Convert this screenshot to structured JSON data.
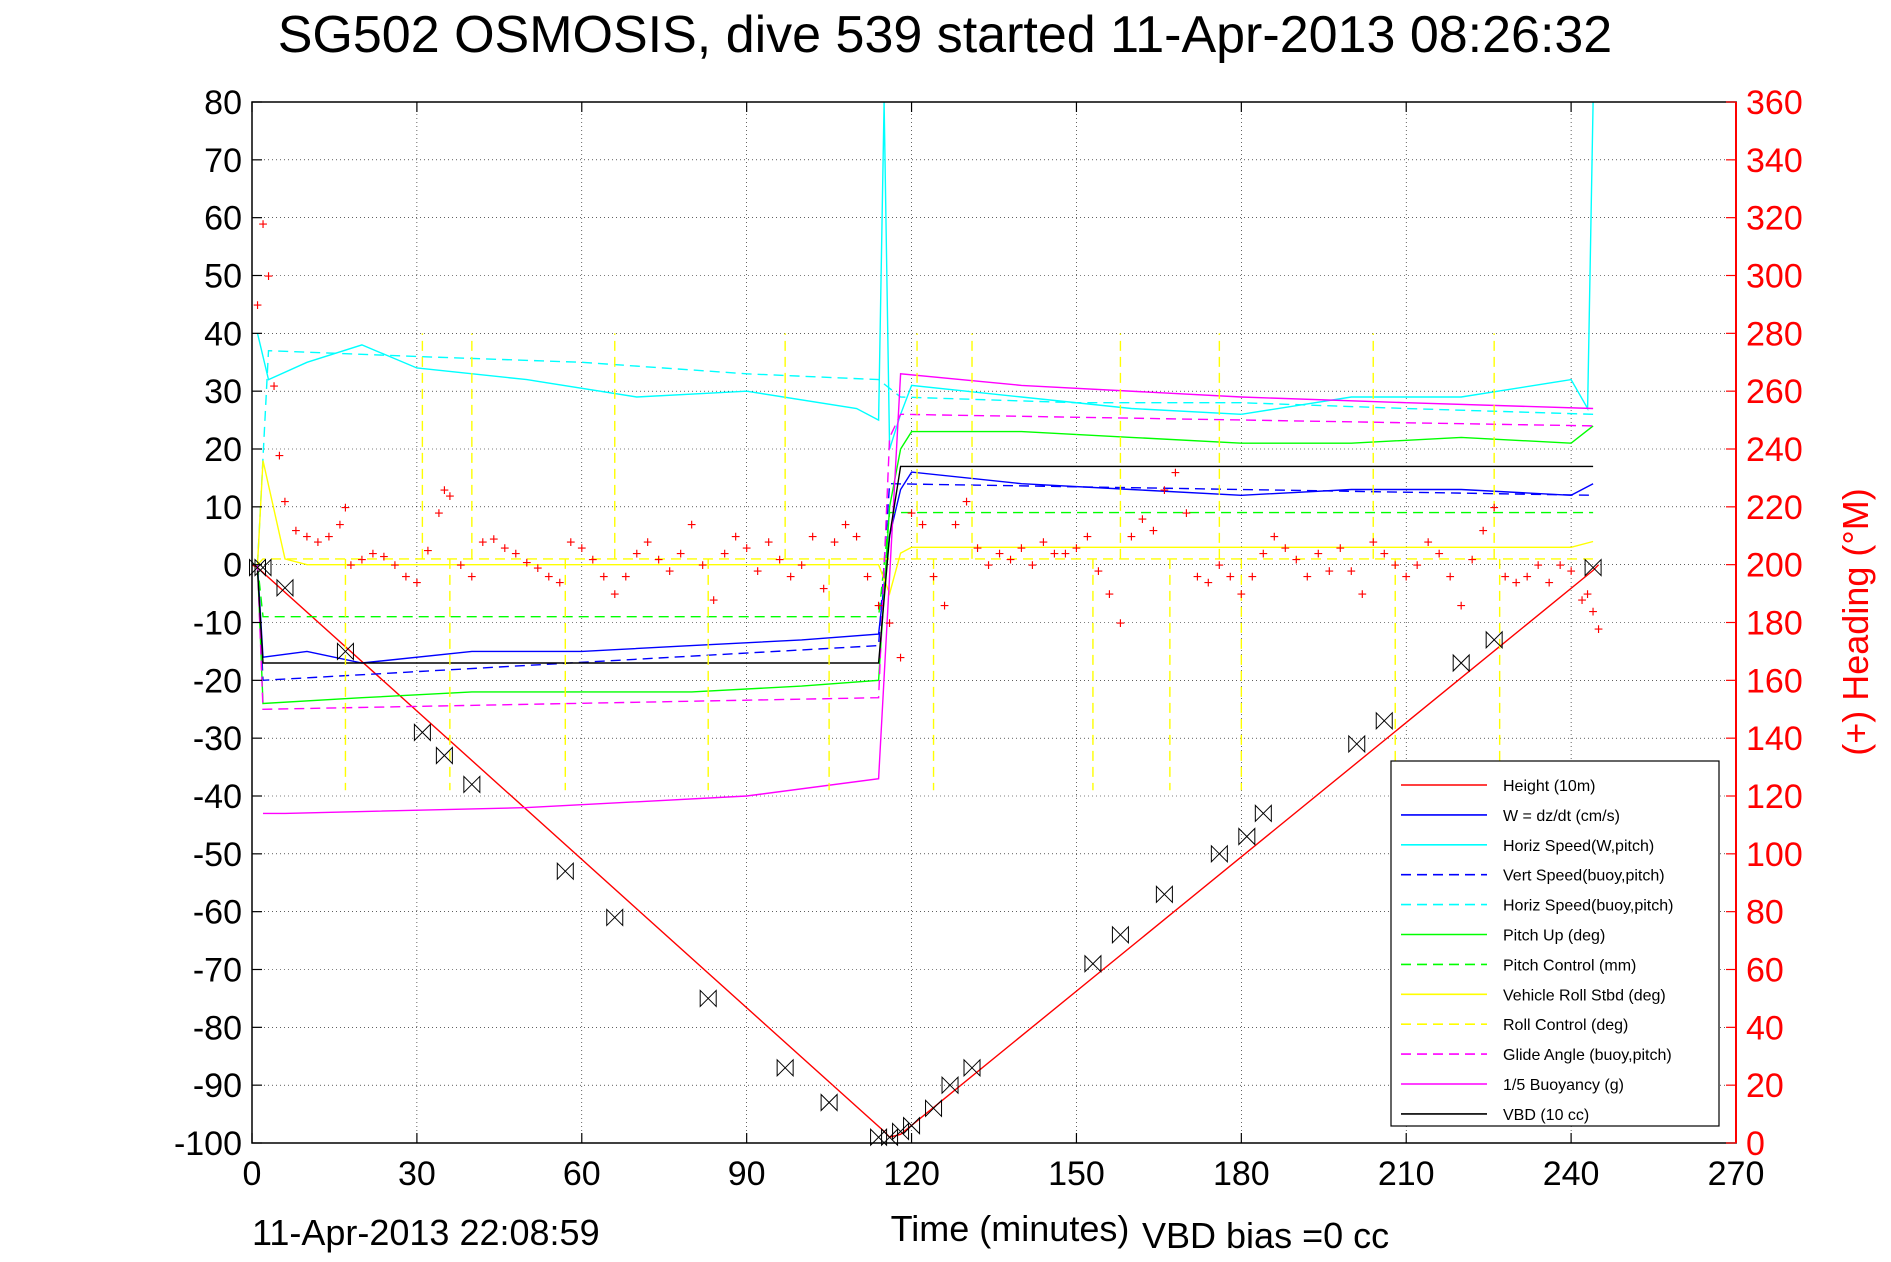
{
  "chart_data": {
    "type": "line",
    "title": "SG502 OSMOSIS, dive 539 started 11-Apr-2013 08:26:32",
    "xlabel": "Time (minutes)",
    "ylabel_right": "(+) Heading (°M)",
    "footer_left": "11-Apr-2013 22:08:59",
    "footer_right": "VBD bias =0 cc",
    "xlim": [
      0,
      270
    ],
    "ylim": [
      -100,
      80
    ],
    "ylim_right": [
      0,
      360
    ],
    "x_ticks": [
      0,
      30,
      60,
      90,
      120,
      150,
      180,
      210,
      240,
      270
    ],
    "x_tick_labels": [
      "0",
      "30",
      "60",
      "90",
      "120",
      "150",
      "180",
      "210",
      "240",
      "270"
    ],
    "y_ticks": [
      80,
      70,
      60,
      50,
      40,
      30,
      20,
      10,
      0,
      -10,
      -20,
      -30,
      -40,
      -50,
      -60,
      -70,
      -80,
      -90,
      -100
    ],
    "y_tick_labels": [
      "80",
      "70",
      "60",
      "50",
      "40",
      "30",
      "20",
      "10",
      "0",
      "-10",
      "-20",
      "-30",
      "-40",
      "-50",
      "-60",
      "-70",
      "-80",
      "-90",
      "-100"
    ],
    "y2_ticks": [
      360,
      340,
      320,
      300,
      280,
      260,
      240,
      220,
      200,
      180,
      160,
      140,
      120,
      100,
      80,
      60,
      40,
      20,
      0
    ],
    "y2_tick_labels": [
      "360",
      "340",
      "320",
      "300",
      "280",
      "260",
      "240",
      "220",
      "200",
      "180",
      "160",
      "140",
      "120",
      "100",
      "80",
      "60",
      "40",
      "20",
      "0"
    ],
    "grid": true,
    "legend_position": "bottom-right",
    "series": [
      {
        "name": "Height (10m)",
        "color": "#ff0000",
        "style": "solid",
        "x": [
          0,
          1,
          115,
          116,
          118,
          244,
          245
        ],
        "y": [
          0,
          -0.5,
          -98,
          -99,
          -98.5,
          -1,
          0
        ]
      },
      {
        "name": "W = dz/dt (cm/s)",
        "color": "#0000ff",
        "style": "solid",
        "x": [
          1,
          2,
          10,
          20,
          40,
          60,
          80,
          100,
          114,
          116,
          118,
          120,
          140,
          160,
          180,
          200,
          220,
          240,
          244
        ],
        "y": [
          0,
          -16,
          -15,
          -17,
          -15,
          -15,
          -14,
          -13,
          -12,
          5,
          13,
          16,
          14,
          13,
          12,
          13,
          13,
          12,
          14
        ]
      },
      {
        "name": "Horiz Speed(W,pitch)",
        "color": "#00ffff",
        "style": "solid",
        "x": [
          1,
          3,
          10,
          20,
          30,
          50,
          70,
          90,
          110,
          114,
          115,
          116,
          118,
          120,
          140,
          160,
          180,
          200,
          220,
          240,
          243,
          244
        ],
        "y": [
          40,
          32,
          35,
          38,
          34,
          32,
          29,
          30,
          27,
          25,
          80,
          20,
          26,
          31,
          29,
          27,
          26,
          29,
          29,
          32,
          27,
          80
        ]
      },
      {
        "name": "Vert Speed(buoy,pitch)",
        "color": "#0000ff",
        "style": "dashed",
        "x": [
          1,
          2,
          114,
          116,
          244
        ],
        "y": [
          0,
          -20,
          -14,
          14,
          12
        ]
      },
      {
        "name": "Horiz Speed(buoy,pitch)",
        "color": "#00ffff",
        "style": "dashed",
        "x": [
          1,
          3,
          30,
          60,
          90,
          114,
          118,
          150,
          180,
          210,
          244
        ],
        "y": [
          0,
          37,
          36,
          35,
          33,
          32,
          29,
          28,
          28,
          27,
          26
        ]
      },
      {
        "name": "Pitch Up (deg)",
        "color": "#00ff00",
        "style": "solid",
        "x": [
          1,
          2,
          20,
          40,
          60,
          80,
          100,
          114,
          116,
          118,
          120,
          140,
          160,
          180,
          200,
          220,
          240,
          244
        ],
        "y": [
          0,
          -24,
          -23,
          -22,
          -22,
          -22,
          -21,
          -20,
          10,
          20,
          23,
          23,
          22,
          21,
          21,
          22,
          21,
          24
        ]
      },
      {
        "name": "Pitch Control (mm)",
        "color": "#00ff00",
        "style": "dashed",
        "x": [
          1,
          2,
          114,
          116,
          118,
          244
        ],
        "y": [
          0,
          -9,
          -9,
          9,
          9,
          9
        ]
      },
      {
        "name": "Vehicle Roll Stbd (deg)",
        "color": "#ffff00",
        "style": "solid",
        "x": [
          1,
          2,
          6,
          10,
          30,
          60,
          90,
          114,
          116,
          118,
          120,
          150,
          180,
          210,
          240,
          244
        ],
        "y": [
          0,
          18,
          1,
          0,
          0,
          0,
          0,
          0,
          -5,
          2,
          3,
          3,
          3,
          3,
          3,
          4
        ]
      },
      {
        "name": "Roll Control (deg)",
        "color": "#ffff00",
        "style": "dashed",
        "x": [
          1,
          2,
          244
        ],
        "y": [
          0,
          1,
          1
        ]
      },
      {
        "name": "Glide Angle (buoy,pitch)",
        "color": "#ff00ff",
        "style": "dashed",
        "x": [
          1,
          2,
          114,
          116,
          118,
          244
        ],
        "y": [
          0,
          -25,
          -23,
          22,
          26,
          24
        ]
      },
      {
        "name": "1/5 Buoyancy (g)",
        "color": "#ff00ff",
        "style": "solid",
        "x": [
          2,
          6,
          50,
          90,
          114,
          118,
          140,
          180,
          210,
          244
        ],
        "y": [
          -43,
          -43,
          -42,
          -40,
          -37,
          33,
          31,
          29,
          28,
          27
        ]
      },
      {
        "name": "VBD (10 cc)",
        "color": "#000000",
        "style": "solid",
        "x": [
          1,
          2,
          114,
          116,
          118,
          244
        ],
        "y": [
          -1,
          -17,
          -17,
          5,
          17,
          17
        ]
      }
    ],
    "roll_control_spikes_x": [
      17,
      31,
      36,
      40,
      57,
      66,
      83,
      97,
      105,
      121,
      124,
      131,
      153,
      158,
      167,
      176,
      180,
      204,
      208,
      226,
      227
    ],
    "heading_points": [
      [
        1,
        290
      ],
      [
        2,
        318
      ],
      [
        3,
        300
      ],
      [
        4,
        262
      ],
      [
        5,
        238
      ],
      [
        6,
        222
      ],
      [
        8,
        212
      ],
      [
        10,
        210
      ],
      [
        12,
        208
      ],
      [
        14,
        210
      ],
      [
        16,
        214
      ],
      [
        17,
        220
      ],
      [
        18,
        200
      ],
      [
        20,
        202
      ],
      [
        22,
        204
      ],
      [
        24,
        203
      ],
      [
        26,
        200
      ],
      [
        28,
        196
      ],
      [
        30,
        194
      ],
      [
        32,
        205
      ],
      [
        34,
        218
      ],
      [
        35,
        226
      ],
      [
        36,
        224
      ],
      [
        38,
        200
      ],
      [
        40,
        196
      ],
      [
        42,
        208
      ],
      [
        44,
        209
      ],
      [
        46,
        206
      ],
      [
        48,
        204
      ],
      [
        50,
        201
      ],
      [
        52,
        199
      ],
      [
        54,
        196
      ],
      [
        56,
        194
      ],
      [
        58,
        208
      ],
      [
        60,
        206
      ],
      [
        62,
        202
      ],
      [
        64,
        196
      ],
      [
        66,
        190
      ],
      [
        68,
        196
      ],
      [
        70,
        204
      ],
      [
        72,
        208
      ],
      [
        74,
        202
      ],
      [
        76,
        198
      ],
      [
        78,
        204
      ],
      [
        80,
        214
      ],
      [
        82,
        200
      ],
      [
        84,
        188
      ],
      [
        86,
        204
      ],
      [
        88,
        210
      ],
      [
        90,
        206
      ],
      [
        92,
        198
      ],
      [
        94,
        208
      ],
      [
        96,
        202
      ],
      [
        98,
        196
      ],
      [
        100,
        200
      ],
      [
        102,
        210
      ],
      [
        104,
        192
      ],
      [
        106,
        208
      ],
      [
        108,
        214
      ],
      [
        110,
        210
      ],
      [
        112,
        196
      ],
      [
        114,
        186
      ],
      [
        116,
        180
      ],
      [
        118,
        168
      ],
      [
        120,
        218
      ],
      [
        122,
        214
      ],
      [
        124,
        196
      ],
      [
        126,
        186
      ],
      [
        128,
        214
      ],
      [
        130,
        222
      ],
      [
        132,
        206
      ],
      [
        134,
        200
      ],
      [
        136,
        204
      ],
      [
        138,
        202
      ],
      [
        140,
        206
      ],
      [
        142,
        200
      ],
      [
        144,
        208
      ],
      [
        146,
        204
      ],
      [
        148,
        204
      ],
      [
        150,
        206
      ],
      [
        152,
        210
      ],
      [
        154,
        198
      ],
      [
        156,
        190
      ],
      [
        158,
        180
      ],
      [
        160,
        210
      ],
      [
        162,
        216
      ],
      [
        164,
        212
      ],
      [
        166,
        226
      ],
      [
        168,
        232
      ],
      [
        170,
        218
      ],
      [
        172,
        196
      ],
      [
        174,
        194
      ],
      [
        176,
        200
      ],
      [
        178,
        196
      ],
      [
        180,
        190
      ],
      [
        182,
        196
      ],
      [
        184,
        204
      ],
      [
        186,
        210
      ],
      [
        188,
        206
      ],
      [
        190,
        202
      ],
      [
        192,
        196
      ],
      [
        194,
        204
      ],
      [
        196,
        198
      ],
      [
        198,
        206
      ],
      [
        200,
        198
      ],
      [
        202,
        190
      ],
      [
        204,
        208
      ],
      [
        206,
        204
      ],
      [
        208,
        200
      ],
      [
        210,
        196
      ],
      [
        212,
        200
      ],
      [
        214,
        208
      ],
      [
        216,
        204
      ],
      [
        218,
        196
      ],
      [
        220,
        186
      ],
      [
        222,
        202
      ],
      [
        224,
        212
      ],
      [
        226,
        220
      ],
      [
        228,
        196
      ],
      [
        230,
        194
      ],
      [
        232,
        196
      ],
      [
        234,
        200
      ],
      [
        236,
        194
      ],
      [
        238,
        200
      ],
      [
        240,
        198
      ],
      [
        242,
        188
      ],
      [
        243,
        190
      ],
      [
        244,
        184
      ],
      [
        245,
        178
      ]
    ],
    "sample_markers": [
      [
        1,
        -0.5
      ],
      [
        2,
        -0.5
      ],
      [
        6,
        -4
      ],
      [
        17,
        -15
      ],
      [
        31,
        -29
      ],
      [
        35,
        -33
      ],
      [
        40,
        -38
      ],
      [
        57,
        -53
      ],
      [
        66,
        -61
      ],
      [
        83,
        -75
      ],
      [
        97,
        -87
      ],
      [
        105,
        -93
      ],
      [
        114,
        -99
      ],
      [
        116,
        -99
      ],
      [
        118,
        -98
      ],
      [
        120,
        -97
      ],
      [
        124,
        -94
      ],
      [
        127,
        -90
      ],
      [
        131,
        -87
      ],
      [
        153,
        -69
      ],
      [
        158,
        -64
      ],
      [
        166,
        -57
      ],
      [
        176,
        -50
      ],
      [
        181,
        -47
      ],
      [
        184,
        -43
      ],
      [
        201,
        -31
      ],
      [
        206,
        -27
      ],
      [
        220,
        -17
      ],
      [
        226,
        -13
      ],
      [
        244,
        -0.5
      ]
    ]
  }
}
